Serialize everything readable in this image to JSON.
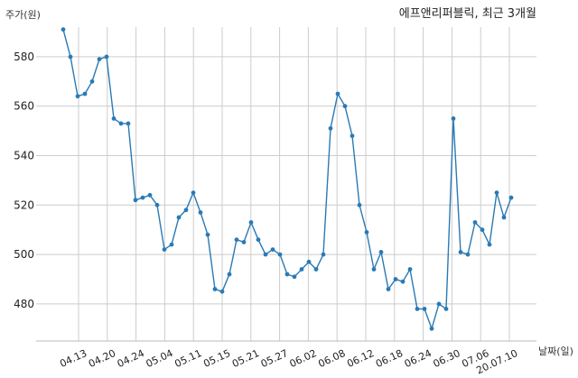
{
  "chart_data": {
    "type": "line",
    "title": "에프앤리퍼블릭, 최근 3개월",
    "ylabel": "주가(원)",
    "xlabel": "날짜(일)",
    "ylim": [
      465,
      592
    ],
    "yticks": [
      480,
      500,
      520,
      540,
      560,
      580
    ],
    "xtick_labels": [
      "04.13",
      "04.20",
      "04.24",
      "05.04",
      "05.11",
      "05.15",
      "05.21",
      "05.27",
      "06.02",
      "06.08",
      "06.12",
      "06.18",
      "06.24",
      "06.30",
      "07.06",
      "20.07.10"
    ],
    "grid": true,
    "line_color": "#2a7ab4",
    "series": [
      {
        "values": [
          591,
          580,
          564,
          565,
          570,
          579,
          580,
          555,
          553,
          553,
          522,
          523,
          524,
          520,
          502,
          504,
          515,
          518,
          525,
          517,
          508,
          486,
          485,
          492,
          506,
          505,
          513,
          506,
          500,
          502,
          500,
          492,
          491,
          494,
          497,
          494,
          500,
          551,
          565,
          560,
          548,
          520,
          509,
          494,
          501,
          486,
          490,
          489,
          494,
          478,
          478,
          470,
          480,
          478,
          555,
          501,
          500,
          513,
          510,
          504,
          525,
          515,
          523
        ]
      }
    ]
  }
}
